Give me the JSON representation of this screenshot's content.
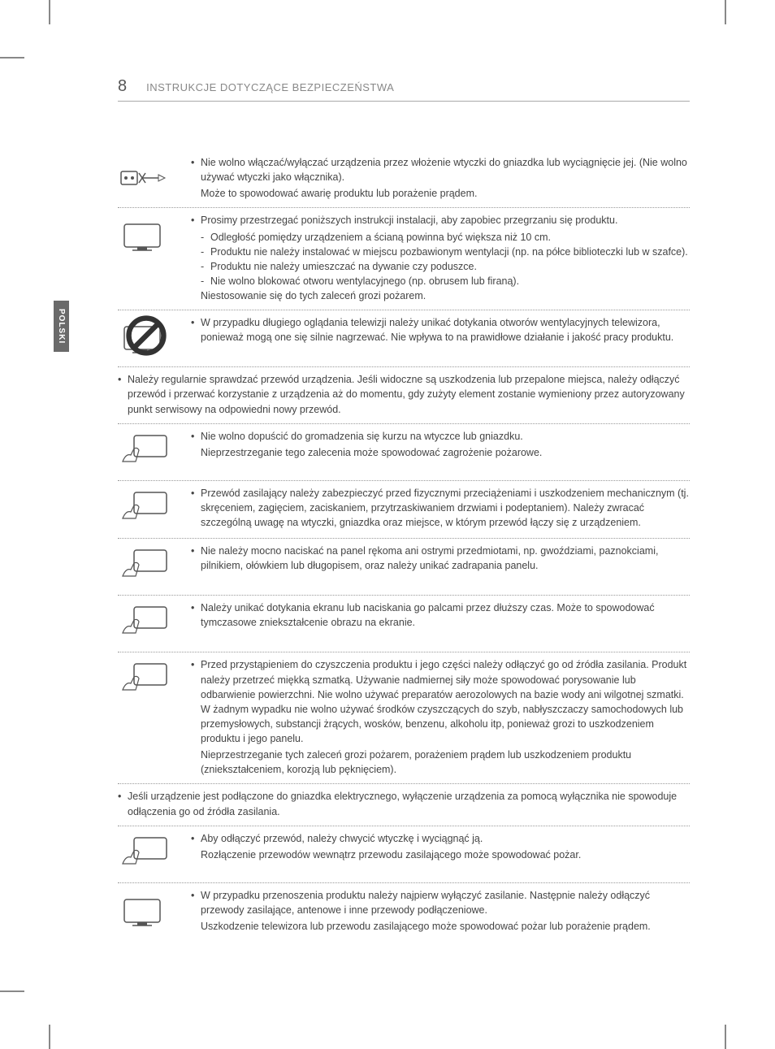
{
  "page_number": "8",
  "header_title": "INSTRUKCJE DOTYCZĄCE BEZPIECZEŃSTWA",
  "side_tab": "POLSKI",
  "colors": {
    "text": "#444444",
    "header_text": "#888888",
    "border": "#999999",
    "tab_bg": "#6a6a6a",
    "tab_text": "#ffffff"
  },
  "rows": [
    {
      "type": "icon",
      "icon": "plug-switch",
      "lines": [
        "Nie wolno włączać/wyłączać urządzenia przez włożenie wtyczki do gniazdka lub wyciągnięcie jej. (Nie wolno używać wtyczki jako włącznika).",
        "Może to spowodować awarię produktu lub porażenie prądem."
      ]
    },
    {
      "type": "icon",
      "icon": "tv-vent",
      "bullet": "Prosimy przestrzegać poniższych instrukcji instalacji, aby zapobiec przegrzaniu się produktu.",
      "dashes": [
        "Odległość pomiędzy urządzeniem a ścianą powinna być większa niż 10 cm.",
        "Produktu nie należy instalować w miejscu pozbawionym wentylacji (np. na półce biblioteczki lub w szafce).",
        "Produktu nie należy umieszczać na dywanie czy poduszce.",
        "Nie wolno blokować otworu wentylacyjnego (np. obrusem lub firaną)."
      ],
      "after": "Niestosowanie się do tych zaleceń grozi pożarem."
    },
    {
      "type": "icon",
      "icon": "tv-hot",
      "prohibit": true,
      "lines": [
        "W przypadku długiego oglądania telewizji należy unikać dotykania otworów wentylacyjnych telewizora, ponieważ mogą one się silnie nagrzewać. Nie wpływa to na prawidłowe działanie i jakość pracy produktu."
      ]
    },
    {
      "type": "full",
      "lines": [
        "Należy regularnie sprawdzać przewód urządzenia. Jeśli widoczne są uszkodzenia lub przepalone miejsca, należy odłączyć przewód i przerwać korzystanie z urządzenia aż do momentu, gdy zużyty element zostanie wymieniony przez autoryzowany punkt serwisowy na odpowiedni nowy przewód."
      ]
    },
    {
      "type": "icon",
      "icon": "dust",
      "lines": [
        "Nie wolno dopuścić do gromadzenia się kurzu na wtyczce lub gniazdku.",
        "Nieprzestrzeganie tego zalecenia może spowodować zagrożenie pożarowe."
      ]
    },
    {
      "type": "icon",
      "icon": "cable-bend",
      "lines": [
        "Przewód zasilający należy zabezpieczyć przed fizycznymi przeciążeniami i uszkodzeniem mechanicznym (tj. skręceniem, zagięciem, zaciskaniem, przytrzaskiwaniem drzwiami i podeptaniem). Należy zwracać szczególną uwagę na wtyczki, gniazdka oraz miejsce, w którym przewód łączy się z urządzeniem."
      ]
    },
    {
      "type": "icon",
      "icon": "press-panel",
      "lines": [
        "Nie należy mocno naciskać na panel rękoma ani ostrymi przedmiotami, np. gwoździami, paznokciami, pilnikiem, ołówkiem lub długopisem, oraz należy unikać zadrapania panelu."
      ]
    },
    {
      "type": "icon",
      "icon": "touch-screen",
      "lines": [
        "Należy unikać dotykania ekranu lub naciskania go palcami przez dłuższy czas. Może to spowodować tymczasowe zniekształcenie obrazu na ekranie."
      ]
    },
    {
      "type": "icon",
      "icon": "clean",
      "lines": [
        "Przed przystąpieniem do czyszczenia produktu i jego części należy odłączyć go od źródła zasilania. Produkt należy przetrzeć miękką szmatką. Używanie nadmiernej siły może spowodować porysowanie lub odbarwienie powierzchni. Nie wolno używać preparatów aerozolowych na bazie wody ani wilgotnej szmatki. W żadnym wypadku nie wolno używać środków czyszczących do szyb, nabłyszczaczy samochodowych lub przemysłowych, substancji żrących, wosków, benzenu, alkoholu itp, ponieważ grozi to uszkodzeniem produktu i jego panelu.",
        "Nieprzestrzeganie tych zaleceń grozi pożarem, porażeniem prądem lub uszkodzeniem produktu (zniekształceniem, korozją lub pęknięciem)."
      ]
    },
    {
      "type": "full",
      "lines": [
        "Jeśli urządzenie jest podłączone do gniazdka elektrycznego, wyłączenie urządzenia za pomocą wyłącznika nie spowoduje odłączenia go od źródła zasilania."
      ]
    },
    {
      "type": "icon",
      "icon": "unplug",
      "lines": [
        "Aby odłączyć przewód, należy chwycić wtyczkę i wyciągnąć ją.",
        "Rozłączenie przewodów wewnątrz przewodu zasilającego może spowodować pożar."
      ]
    },
    {
      "type": "icon",
      "icon": "move-tv",
      "lines": [
        "W przypadku przenoszenia produktu należy najpierw wyłączyć zasilanie. Następnie należy odłączyć przewody zasilające, antenowe i inne przewody podłączeniowe.",
        "Uszkodzenie telewizora lub przewodu zasilającego może spowodować pożar lub porażenie prądem."
      ]
    }
  ]
}
